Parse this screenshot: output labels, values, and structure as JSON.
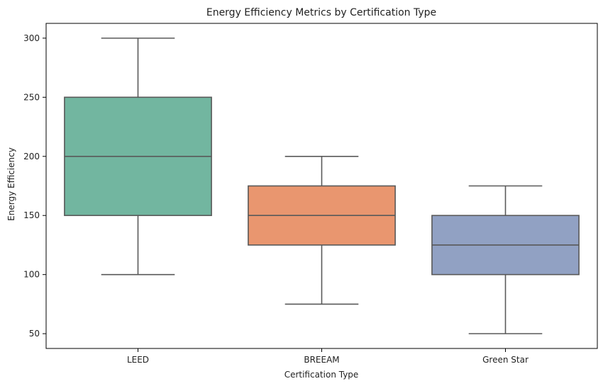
{
  "chart_data": {
    "type": "box",
    "title": "Energy Efficiency Metrics by Certification Type",
    "xlabel": "Certification Type",
    "ylabel": "Energy Efficiency",
    "categories": [
      "LEED",
      "BREEAM",
      "Green Star"
    ],
    "boxes": [
      {
        "category": "LEED",
        "min": 100,
        "q1": 150,
        "median": 200,
        "q3": 250,
        "max": 300,
        "color": "#72b6a0"
      },
      {
        "category": "BREEAM",
        "min": 75,
        "q1": 125,
        "median": 150,
        "q3": 175,
        "max": 200,
        "color": "#e9966f"
      },
      {
        "category": "Green Star",
        "min": 50,
        "q1": 100,
        "median": 125,
        "q3": 150,
        "max": 175,
        "color": "#91a1c3"
      }
    ],
    "yticks": [
      50,
      100,
      150,
      200,
      250,
      300
    ],
    "ylim": [
      37.5,
      312.5
    ],
    "grid": false,
    "line_color": "#595959"
  }
}
